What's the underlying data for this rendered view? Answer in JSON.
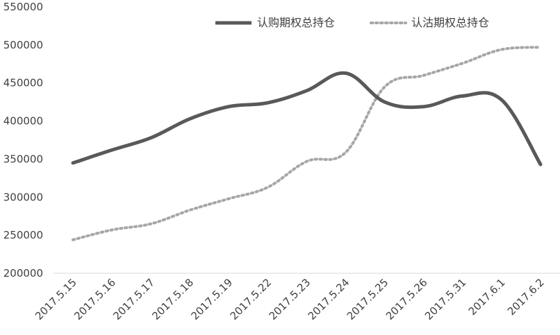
{
  "chart_data": {
    "type": "line",
    "categories": [
      "2017.5.15",
      "2017.5.16",
      "2017.5.17",
      "2017.5.18",
      "2017.5.19",
      "2017.5.22",
      "2017.5.23",
      "2017.5.24",
      "2017.5.25",
      "2017.5.26",
      "2017.5.31",
      "2017.6.1",
      "2017.6.2"
    ],
    "series": [
      {
        "name": "认购期权总持仓",
        "values": [
          345000,
          362000,
          378000,
          403000,
          419000,
          424000,
          440000,
          463000,
          425000,
          419000,
          433000,
          428000,
          343000
        ],
        "color": "#595959",
        "style": "solid"
      },
      {
        "name": "认沽期权总持仓",
        "values": [
          244000,
          257000,
          265000,
          283000,
          298000,
          313000,
          347000,
          359000,
          445000,
          460000,
          476000,
          494000,
          497000
        ],
        "color": "#a6a6a6",
        "style": "dotted"
      }
    ],
    "ylim": [
      200000,
      550000
    ],
    "yticks": [
      200000,
      250000,
      300000,
      350000,
      400000,
      450000,
      500000,
      550000
    ],
    "title": "",
    "xlabel": "",
    "ylabel": "",
    "grid": false,
    "legend": "top-right"
  }
}
